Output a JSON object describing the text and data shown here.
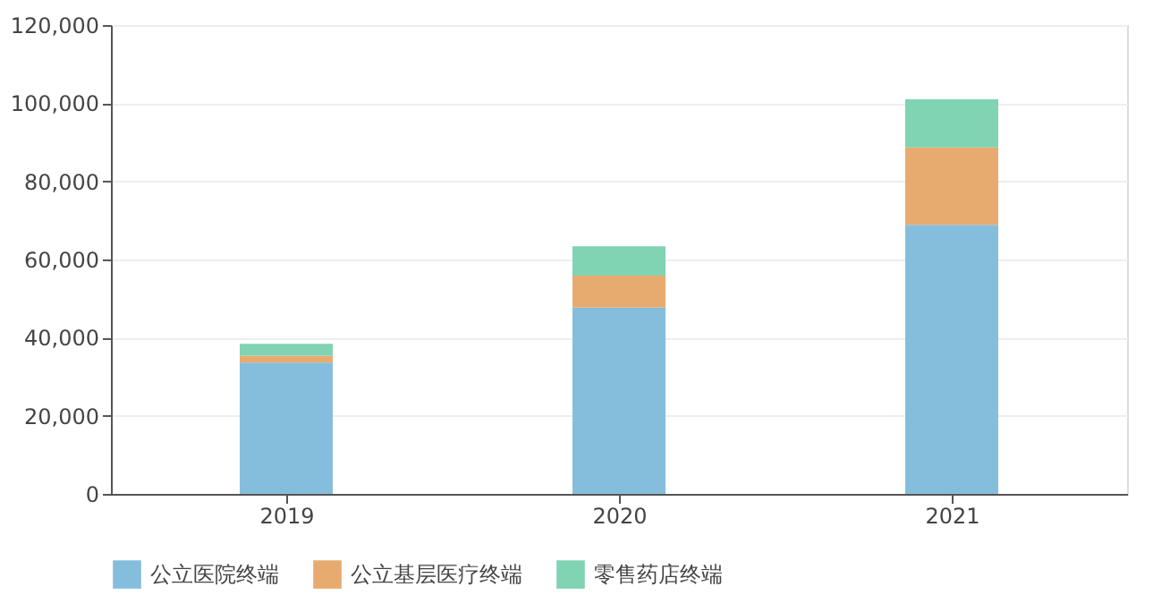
{
  "chart_data": {
    "type": "bar",
    "stacked": true,
    "categories": [
      "2019",
      "2020",
      "2021"
    ],
    "series": [
      {
        "name": "公立医院终端",
        "color": "#85bedd",
        "values": [
          33600,
          47700,
          68900
        ]
      },
      {
        "name": "公立基层医疗终端",
        "color": "#e7ab6f",
        "values": [
          1800,
          8200,
          19800
        ]
      },
      {
        "name": "零售药店终端",
        "color": "#80d3b3",
        "values": [
          3000,
          7500,
          12300
        ]
      }
    ],
    "ylim": [
      0,
      120000
    ],
    "yticks": [
      0,
      {
        "value": 20000,
        "label": "20,000"
      },
      {
        "value": 40000,
        "label": "40,000"
      },
      {
        "value": 60000,
        "label": "60,000"
      },
      {
        "value": 80000,
        "label": "80,000"
      },
      {
        "value": 100000,
        "label": "100,000"
      },
      {
        "value": 120000,
        "label": "120,000"
      }
    ],
    "grid": "y",
    "legend": "bottom"
  }
}
